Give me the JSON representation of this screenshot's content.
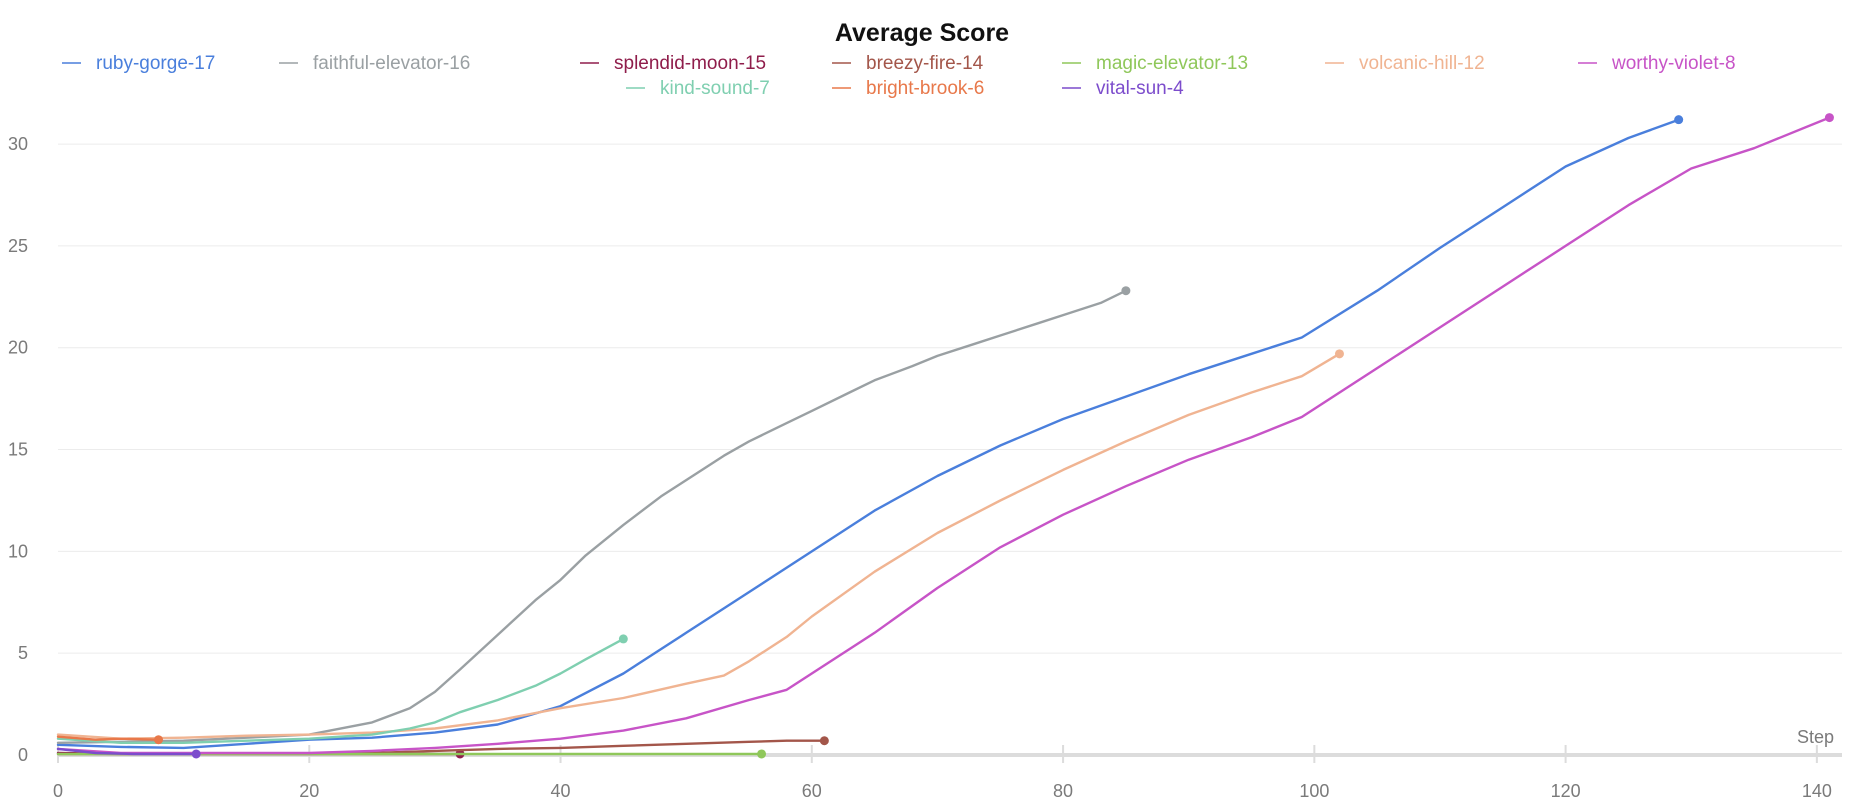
{
  "chart_data": {
    "type": "line",
    "title": "Average Score",
    "xlabel": "Step",
    "ylabel": "",
    "xlim": [
      0,
      142
    ],
    "ylim": [
      0,
      33
    ],
    "xticks": [
      0,
      20,
      40,
      60,
      80,
      100,
      120,
      140
    ],
    "yticks": [
      0,
      5,
      10,
      15,
      20,
      25,
      30
    ],
    "grid": "horizontal",
    "legend_position": "top",
    "series": [
      {
        "name": "ruby-gorge-17",
        "color": "#4a7fdc",
        "x": [
          0,
          5,
          10,
          15,
          20,
          25,
          30,
          35,
          40,
          45,
          50,
          55,
          60,
          65,
          70,
          75,
          80,
          85,
          90,
          95,
          99,
          105,
          110,
          115,
          120,
          125,
          129
        ],
        "y": [
          0.5,
          0.4,
          0.35,
          0.55,
          0.75,
          0.85,
          1.1,
          1.5,
          2.4,
          4.0,
          6.0,
          8.0,
          10.0,
          12.0,
          13.7,
          15.2,
          16.5,
          17.6,
          18.7,
          19.7,
          20.5,
          22.8,
          24.9,
          26.9,
          28.9,
          30.3,
          31.2
        ]
      },
      {
        "name": "faithful-elevator-16",
        "color": "#9aa0a3",
        "x": [
          0,
          5,
          10,
          15,
          20,
          25,
          28,
          30,
          32,
          35,
          38,
          40,
          42,
          45,
          48,
          50,
          53,
          55,
          58,
          60,
          63,
          65,
          68,
          70,
          73,
          75,
          78,
          80,
          83,
          85
        ],
        "y": [
          0.6,
          0.65,
          0.7,
          0.85,
          1.0,
          1.6,
          2.3,
          3.1,
          4.2,
          5.9,
          7.6,
          8.6,
          9.8,
          11.3,
          12.7,
          13.5,
          14.7,
          15.4,
          16.3,
          16.9,
          17.8,
          18.4,
          19.1,
          19.6,
          20.2,
          20.6,
          21.2,
          21.6,
          22.2,
          22.8
        ]
      },
      {
        "name": "splendid-moon-15",
        "color": "#8f1d4b",
        "x": [
          0,
          5,
          10,
          15,
          20,
          25,
          30,
          32
        ],
        "y": [
          0.1,
          0.05,
          0.05,
          0.05,
          0.05,
          0.05,
          0.05,
          0.05
        ]
      },
      {
        "name": "breezy-fire-14",
        "color": "#a3564a",
        "x": [
          0,
          5,
          10,
          15,
          20,
          25,
          30,
          35,
          40,
          45,
          50,
          55,
          58,
          61
        ],
        "y": [
          0.05,
          0.05,
          0.05,
          0.05,
          0.05,
          0.1,
          0.2,
          0.3,
          0.35,
          0.45,
          0.55,
          0.65,
          0.7,
          0.7
        ]
      },
      {
        "name": "magic-elevator-13",
        "color": "#8fc75a",
        "x": [
          0,
          10,
          20,
          30,
          40,
          50,
          56
        ],
        "y": [
          0.05,
          0.05,
          0.05,
          0.05,
          0.05,
          0.05,
          0.05
        ]
      },
      {
        "name": "volcanic-hill-12",
        "color": "#f0b492",
        "x": [
          0,
          5,
          10,
          15,
          20,
          25,
          30,
          35,
          40,
          45,
          50,
          53,
          55,
          58,
          60,
          65,
          70,
          75,
          80,
          85,
          90,
          95,
          99,
          102
        ],
        "y": [
          1.0,
          0.8,
          0.85,
          0.95,
          1.0,
          1.1,
          1.3,
          1.7,
          2.3,
          2.8,
          3.5,
          3.9,
          4.6,
          5.8,
          6.8,
          9.0,
          10.9,
          12.5,
          14.0,
          15.4,
          16.7,
          17.8,
          18.6,
          19.7
        ]
      },
      {
        "name": "worthy-violet-8",
        "color": "#c754c7",
        "x": [
          0,
          5,
          10,
          15,
          20,
          25,
          30,
          35,
          40,
          45,
          50,
          55,
          58,
          60,
          65,
          70,
          75,
          80,
          85,
          90,
          95,
          99,
          105,
          110,
          115,
          120,
          125,
          130,
          135,
          141
        ],
        "y": [
          0.3,
          0.1,
          0.1,
          0.1,
          0.1,
          0.2,
          0.35,
          0.55,
          0.8,
          1.2,
          1.8,
          2.7,
          3.2,
          4.0,
          6.0,
          8.2,
          10.2,
          11.8,
          13.2,
          14.5,
          15.6,
          16.6,
          19.0,
          21.0,
          23.0,
          25.0,
          27.0,
          28.8,
          29.8,
          31.3
        ]
      },
      {
        "name": "kind-sound-7",
        "color": "#7fcfb0",
        "x": [
          0,
          5,
          10,
          15,
          20,
          25,
          28,
          30,
          32,
          35,
          38,
          40,
          42,
          45
        ],
        "y": [
          0.8,
          0.6,
          0.6,
          0.7,
          0.8,
          1.0,
          1.3,
          1.6,
          2.1,
          2.7,
          3.4,
          4.0,
          4.7,
          5.7
        ]
      },
      {
        "name": "bright-brook-6",
        "color": "#e8784a",
        "x": [
          0,
          3,
          5,
          8
        ],
        "y": [
          0.9,
          0.75,
          0.8,
          0.75
        ]
      },
      {
        "name": "vital-sun-4",
        "color": "#7c4ccc",
        "x": [
          0,
          3,
          6,
          9,
          11
        ],
        "y": [
          0.3,
          0.1,
          0.05,
          0.05,
          0.05
        ]
      }
    ]
  }
}
